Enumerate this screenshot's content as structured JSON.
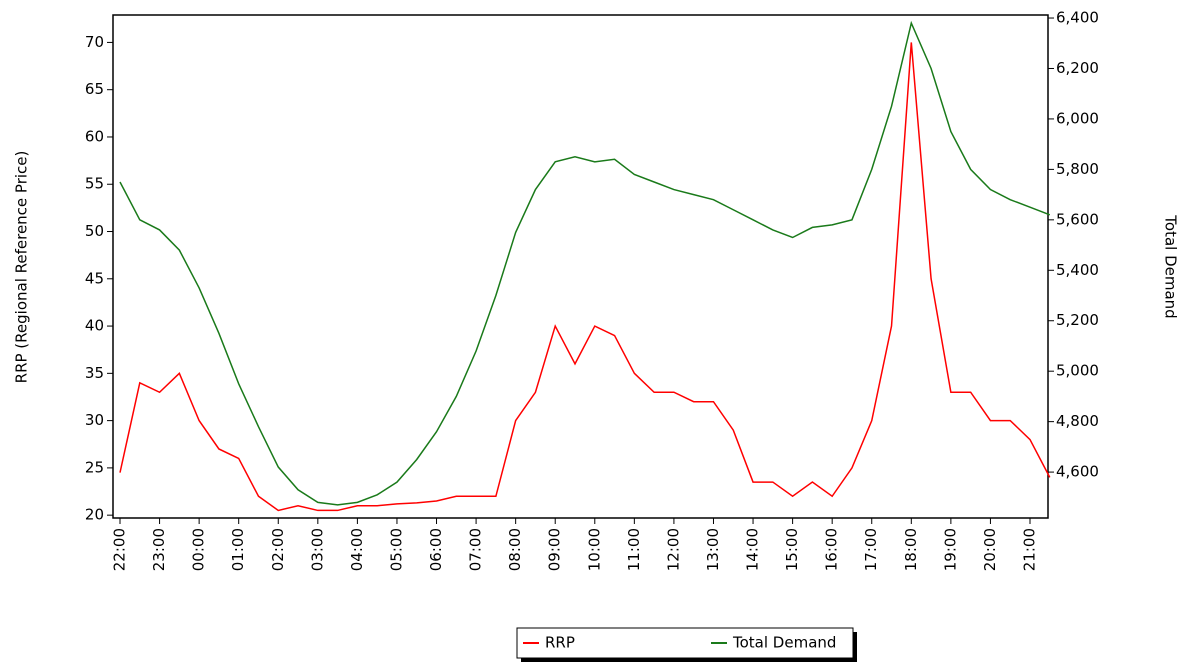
{
  "chart_data": {
    "type": "line",
    "y_label": "RRP (Regional Reference Price)",
    "y2_label": "Total Demand",
    "categories": [
      "22:00",
      null,
      "23:00",
      null,
      "00:00",
      null,
      "01:00",
      null,
      "02:00",
      null,
      "03:00",
      null,
      "04:00",
      null,
      "05:00",
      null,
      "06:00",
      null,
      "07:00",
      null,
      "08:00",
      null,
      "09:00",
      null,
      "10:00",
      null,
      "11:00",
      null,
      "12:00",
      null,
      "13:00",
      null,
      "14:00",
      null,
      "15:00",
      null,
      "16:00",
      null,
      "17:00",
      null,
      "18:00",
      null,
      "19:00",
      null,
      "20:00",
      null,
      "21:00",
      null
    ],
    "series": [
      {
        "name": "RRP",
        "color": "#ff0000",
        "values": [
          24.5,
          34,
          33,
          35,
          30,
          27,
          26,
          22,
          20.5,
          21,
          20.5,
          20.5,
          21,
          21,
          21.2,
          21.3,
          21.5,
          22,
          22,
          22,
          30,
          33,
          40,
          36,
          40,
          39,
          35,
          33,
          33,
          32,
          32,
          29,
          23.5,
          23.5,
          22,
          23.5,
          22,
          25,
          30,
          40,
          70,
          45,
          33,
          33,
          30,
          30,
          28,
          24
        ]
      },
      {
        "name": "Total Demand",
        "color": "#1a7a1a",
        "axis": "y2",
        "values": [
          5750,
          5600,
          5560,
          5480,
          5330,
          5150,
          4950,
          4780,
          4620,
          4530,
          4480,
          4470,
          4480,
          4510,
          4560,
          4650,
          4760,
          4900,
          5080,
          5300,
          5550,
          5720,
          5830,
          5850,
          5830,
          5840,
          5780,
          5750,
          5720,
          5700,
          5680,
          5640,
          5600,
          5560,
          5530,
          5570,
          5580,
          5600,
          5800,
          6050,
          6380,
          6200,
          5950,
          5800,
          5720,
          5680,
          5650,
          5620
        ]
      }
    ],
    "ylim": [
      19.7,
      72.9
    ],
    "yticks": [
      20,
      25,
      30,
      35,
      40,
      45,
      50,
      55,
      60,
      65,
      70
    ],
    "y2lim": [
      4418,
      6412
    ],
    "y2ticks": [
      {
        "value": 4600,
        "label": "4,600"
      },
      {
        "value": 4800,
        "label": "4,800"
      },
      {
        "value": 5000,
        "label": "5,000"
      },
      {
        "value": 5200,
        "label": "5,200"
      },
      {
        "value": 5400,
        "label": "5,400"
      },
      {
        "value": 5600,
        "label": "5,600"
      },
      {
        "value": 5800,
        "label": "5,800"
      },
      {
        "value": 6000,
        "label": "6,000"
      },
      {
        "value": 6200,
        "label": "6,200"
      },
      {
        "value": 6400,
        "label": "6,400"
      }
    ],
    "grid": false,
    "legend": "bottom"
  }
}
